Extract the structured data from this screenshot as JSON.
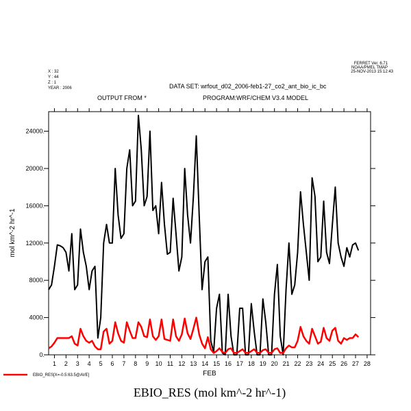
{
  "chart_data": {
    "type": "line",
    "title": "EBIO_RES (mol km^-2 hr^-1)",
    "program_info": [
      "FERRET Ver. 6.71",
      "NOAA/PMEL TMAP",
      "25-NOV-2013 15:12:43"
    ],
    "coords": [
      "X : 32",
      "Y : 44",
      "Z : 1",
      "YEAR : 2006"
    ],
    "dataset": "DATA SET: wrfout_d02_2006-feb1-27_co2_ant_bio_ic_bc",
    "subtitles": [
      "OUTPUT FROM *",
      "PROGRAM:WRF/CHEM V3.4 MODEL"
    ],
    "x_label": "FEB",
    "y_label": "mol km^-2 hr^-1",
    "xlim": [
      1,
      28.8
    ],
    "ylim": [
      0,
      26100
    ],
    "xticks": [
      {
        "value": 1.5,
        "label": "1"
      },
      {
        "value": 2.5,
        "label": "2"
      },
      {
        "value": 3.5,
        "label": "3"
      },
      {
        "value": 4.5,
        "label": "4"
      },
      {
        "value": 5.5,
        "label": "5"
      },
      {
        "value": 6.5,
        "label": "6"
      },
      {
        "value": 7.5,
        "label": "7"
      },
      {
        "value": 8.5,
        "label": "8"
      },
      {
        "value": 9.5,
        "label": "9"
      },
      {
        "value": 10.5,
        "label": "10"
      },
      {
        "value": 11.5,
        "label": "11"
      },
      {
        "value": 12.5,
        "label": "12"
      },
      {
        "value": 13.5,
        "label": "13"
      },
      {
        "value": 14.5,
        "label": "14"
      },
      {
        "value": 15.5,
        "label": "15"
      },
      {
        "value": 16.5,
        "label": "16"
      },
      {
        "value": 17.5,
        "label": "17"
      },
      {
        "value": 18.5,
        "label": "18"
      },
      {
        "value": 19.5,
        "label": "19"
      },
      {
        "value": 20.5,
        "label": "20"
      },
      {
        "value": 21.5,
        "label": "21"
      },
      {
        "value": 22.5,
        "label": "22"
      },
      {
        "value": 23.5,
        "label": "23"
      },
      {
        "value": 24.5,
        "label": "24"
      },
      {
        "value": 25.5,
        "label": "25"
      },
      {
        "value": 26.5,
        "label": "26"
      },
      {
        "value": 27.5,
        "label": "27"
      },
      {
        "value": 28.5,
        "label": "28"
      }
    ],
    "yticks": [
      {
        "value": 0,
        "label": "0."
      },
      {
        "value": 4000,
        "label": "4000."
      },
      {
        "value": 8000,
        "label": "8000."
      },
      {
        "value": 12000,
        "label": "12000."
      },
      {
        "value": 16000,
        "label": "16000."
      },
      {
        "value": 20000,
        "label": "20000."
      },
      {
        "value": 24000,
        "label": "24000."
      }
    ],
    "x": [
      1,
      1.25,
      1.5,
      1.75,
      2,
      2.25,
      2.5,
      2.75,
      3,
      3.25,
      3.5,
      3.75,
      4,
      4.25,
      4.5,
      4.75,
      5,
      5.25,
      5.5,
      5.75,
      6,
      6.25,
      6.5,
      6.75,
      7,
      7.25,
      7.5,
      7.75,
      8,
      8.25,
      8.5,
      8.75,
      9,
      9.25,
      9.5,
      9.75,
      10,
      10.25,
      10.5,
      10.75,
      11,
      11.25,
      11.5,
      11.75,
      12,
      12.25,
      12.5,
      12.75,
      13,
      13.25,
      13.5,
      13.75,
      14,
      14.25,
      14.5,
      14.75,
      15,
      15.25,
      15.5,
      15.75,
      16,
      16.25,
      16.5,
      16.75,
      17,
      17.25,
      17.5,
      17.75,
      18,
      18.25,
      18.5,
      18.75,
      19,
      19.25,
      19.5,
      19.75,
      20,
      20.25,
      20.5,
      20.75,
      21,
      21.25,
      21.5,
      21.75,
      22,
      22.25,
      22.5,
      22.75,
      23,
      23.25,
      23.5,
      23.75,
      24,
      24.25,
      24.5,
      24.75,
      25,
      25.25,
      25.5,
      25.75,
      26,
      26.25,
      26.5,
      26.75,
      27,
      27.25,
      27.5,
      27.75
    ],
    "series": [
      {
        "color": "#000000",
        "values": [
          7000,
          7500,
          9500,
          11800,
          11700,
          11500,
          11000,
          9000,
          13000,
          7000,
          7500,
          13500,
          11000,
          9500,
          7000,
          9000,
          9500,
          1800,
          4000,
          12000,
          14000,
          12000,
          12000,
          20000,
          15000,
          12500,
          13000,
          20000,
          22000,
          16000,
          16500,
          25700,
          22000,
          16000,
          17000,
          24000,
          15500,
          16000,
          13000,
          18500,
          14000,
          10800,
          11000,
          16800,
          13000,
          9000,
          10500,
          20000,
          15000,
          12000,
          17000,
          23500,
          15000,
          7000,
          10000,
          10500,
          1500,
          300,
          5000,
          6500,
          200,
          0,
          6500,
          2000,
          0,
          0,
          5000,
          5000,
          0,
          0,
          5500,
          2500,
          0,
          0,
          6000,
          3500,
          0,
          0,
          6500,
          9700,
          2000,
          0,
          7000,
          12000,
          6500,
          7500,
          11000,
          17500,
          14000,
          11000,
          8000,
          19000,
          17000,
          10000,
          10500,
          16500,
          11000,
          9800,
          14000,
          18000,
          12000,
          10500,
          9500,
          11500,
          10500,
          11800,
          12000,
          11200
        ]
      },
      {
        "name": "EBIO_RES[X=-0.5:63.5@AVE]",
        "color": "#ff0000",
        "values": [
          700,
          900,
          1300,
          1800,
          1800,
          1800,
          1800,
          1800,
          2000,
          1200,
          1000,
          2800,
          2000,
          1500,
          1300,
          1500,
          900,
          600,
          600,
          2500,
          2800,
          1200,
          1500,
          3500,
          2300,
          1500,
          1300,
          3500,
          2600,
          1800,
          1800,
          3500,
          3000,
          2000,
          1900,
          3800,
          2000,
          1600,
          2000,
          3800,
          1700,
          1600,
          1500,
          3800,
          2000,
          1500,
          2200,
          3900,
          2300,
          1700,
          2800,
          4000,
          2200,
          1200,
          700,
          1900,
          600,
          200,
          400,
          700,
          300,
          200,
          600,
          700,
          200,
          200,
          400,
          600,
          200,
          200,
          400,
          600,
          200,
          200,
          500,
          600,
          200,
          200,
          600,
          700,
          200,
          200,
          700,
          1000,
          800,
          800,
          1500,
          3000,
          2000,
          1500,
          1200,
          2800,
          2000,
          1200,
          1400,
          2900,
          1800,
          1500,
          2600,
          2900,
          1500,
          1200,
          1800,
          1600,
          1800,
          1800,
          2200,
          1900
        ]
      }
    ]
  }
}
